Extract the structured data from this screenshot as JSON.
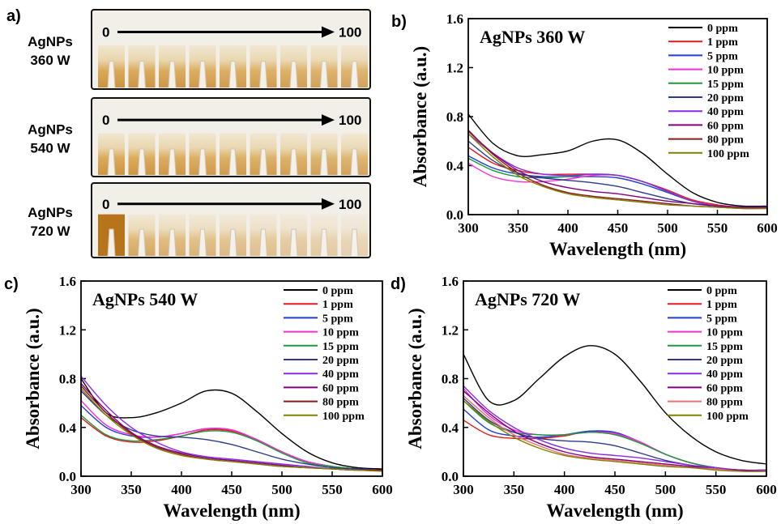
{
  "photo_panel": {
    "label": "a)",
    "rows": [
      {
        "name": [
          "AgNPs",
          "360 W"
        ],
        "start": "0",
        "end": "100"
      },
      {
        "name": [
          "AgNPs",
          "540 W"
        ],
        "start": "0",
        "end": "100"
      },
      {
        "name": [
          "AgNPs",
          "720 W"
        ],
        "start": "0",
        "end": "100"
      }
    ]
  },
  "chart_data": [
    {
      "type": "line",
      "panel_label": "b)",
      "title": "AgNPs 360 W",
      "xlabel": "Wavelength (nm)",
      "ylabel": "Absorbance (a.u.)",
      "x": [
        300,
        325,
        350,
        375,
        400,
        425,
        450,
        475,
        500,
        525,
        550,
        575,
        600
      ],
      "xlim": [
        300,
        600
      ],
      "xticks": [
        300,
        350,
        400,
        450,
        500,
        550,
        600
      ],
      "ylim": [
        0,
        1.6
      ],
      "yticks": [
        {
          "value": 0,
          "label": "0.0"
        },
        {
          "value": 0.4,
          "label": "0.4"
        },
        {
          "value": 0.8,
          "label": "0.8"
        },
        {
          "value": 1.2,
          "label": "1.2"
        },
        {
          "value": 1.6,
          "label": "1.6"
        }
      ],
      "legend": "upper-right",
      "series": [
        {
          "name": "0 ppm",
          "color": "#000000",
          "values": [
            0.82,
            0.58,
            0.48,
            0.49,
            0.52,
            0.6,
            0.61,
            0.5,
            0.33,
            0.18,
            0.1,
            0.07,
            0.07
          ]
        },
        {
          "name": "1 ppm",
          "color": "#e41a1c",
          "values": [
            0.55,
            0.42,
            0.36,
            0.33,
            0.33,
            0.33,
            0.32,
            0.27,
            0.2,
            0.12,
            0.08,
            0.06,
            0.06
          ]
        },
        {
          "name": "5 ppm",
          "color": "#1f3fd6",
          "values": [
            0.48,
            0.38,
            0.33,
            0.31,
            0.31,
            0.31,
            0.3,
            0.25,
            0.18,
            0.11,
            0.07,
            0.06,
            0.06
          ]
        },
        {
          "name": "10 ppm",
          "color": "#ff2bd6",
          "values": [
            0.42,
            0.31,
            0.27,
            0.27,
            0.29,
            0.32,
            0.32,
            0.27,
            0.19,
            0.11,
            0.07,
            0.06,
            0.06
          ]
        },
        {
          "name": "15 ppm",
          "color": "#1a9a3a",
          "values": [
            0.46,
            0.36,
            0.31,
            0.3,
            0.31,
            0.33,
            0.32,
            0.27,
            0.19,
            0.11,
            0.07,
            0.06,
            0.06
          ]
        },
        {
          "name": "20 ppm",
          "color": "#2e3a87",
          "values": [
            0.6,
            0.44,
            0.34,
            0.3,
            0.28,
            0.26,
            0.23,
            0.18,
            0.13,
            0.09,
            0.07,
            0.06,
            0.06
          ]
        },
        {
          "name": "40 ppm",
          "color": "#8a2be2",
          "values": [
            0.66,
            0.5,
            0.38,
            0.33,
            0.32,
            0.33,
            0.32,
            0.27,
            0.19,
            0.11,
            0.07,
            0.06,
            0.06
          ]
        },
        {
          "name": "60 ppm",
          "color": "#800080",
          "values": [
            0.68,
            0.5,
            0.36,
            0.27,
            0.22,
            0.19,
            0.17,
            0.14,
            0.11,
            0.09,
            0.07,
            0.06,
            0.06
          ]
        },
        {
          "name": "80 ppm",
          "color": "#8b1a1a",
          "values": [
            0.69,
            0.49,
            0.34,
            0.24,
            0.18,
            0.15,
            0.13,
            0.11,
            0.09,
            0.07,
            0.06,
            0.05,
            0.05
          ]
        },
        {
          "name": "100 ppm",
          "color": "#808000",
          "values": [
            0.66,
            0.47,
            0.32,
            0.23,
            0.17,
            0.14,
            0.12,
            0.1,
            0.08,
            0.07,
            0.06,
            0.05,
            0.05
          ]
        }
      ]
    },
    {
      "type": "line",
      "panel_label": "c)",
      "title": "AgNPs 540 W",
      "xlabel": "Wavelength (nm)",
      "ylabel": "Absorbance (a.u.)",
      "x": [
        300,
        325,
        350,
        375,
        400,
        425,
        450,
        475,
        500,
        525,
        550,
        575,
        600
      ],
      "xlim": [
        300,
        600
      ],
      "xticks": [
        300,
        350,
        400,
        450,
        500,
        550,
        600
      ],
      "ylim": [
        0,
        1.6
      ],
      "yticks": [
        {
          "value": 0,
          "label": "0.0"
        },
        {
          "value": 0.4,
          "label": "0.4"
        },
        {
          "value": 0.8,
          "label": "0.8"
        },
        {
          "value": 1.2,
          "label": "1.2"
        },
        {
          "value": 1.6,
          "label": "1.6"
        }
      ],
      "legend": "upper-right",
      "series": [
        {
          "name": "0 ppm",
          "color": "#000000",
          "values": [
            0.8,
            0.52,
            0.48,
            0.52,
            0.6,
            0.7,
            0.68,
            0.53,
            0.35,
            0.2,
            0.11,
            0.07,
            0.06
          ]
        },
        {
          "name": "1 ppm",
          "color": "#e41a1c",
          "values": [
            0.48,
            0.33,
            0.28,
            0.29,
            0.33,
            0.38,
            0.37,
            0.3,
            0.2,
            0.12,
            0.08,
            0.06,
            0.05
          ]
        },
        {
          "name": "5 ppm",
          "color": "#1f3fd6",
          "values": [
            0.58,
            0.4,
            0.33,
            0.32,
            0.35,
            0.39,
            0.38,
            0.3,
            0.2,
            0.12,
            0.08,
            0.06,
            0.05
          ]
        },
        {
          "name": "10 ppm",
          "color": "#ff2bd6",
          "values": [
            0.62,
            0.42,
            0.34,
            0.32,
            0.35,
            0.39,
            0.38,
            0.3,
            0.2,
            0.12,
            0.08,
            0.06,
            0.05
          ]
        },
        {
          "name": "15 ppm",
          "color": "#1a9a3a",
          "values": [
            0.5,
            0.34,
            0.29,
            0.3,
            0.33,
            0.37,
            0.36,
            0.29,
            0.19,
            0.11,
            0.08,
            0.06,
            0.05
          ]
        },
        {
          "name": "20 ppm",
          "color": "#2e3a87",
          "values": [
            0.7,
            0.5,
            0.38,
            0.33,
            0.32,
            0.3,
            0.26,
            0.2,
            0.14,
            0.1,
            0.07,
            0.06,
            0.05
          ]
        },
        {
          "name": "40 ppm",
          "color": "#8a2be2",
          "values": [
            0.82,
            0.58,
            0.4,
            0.28,
            0.2,
            0.16,
            0.14,
            0.12,
            0.1,
            0.08,
            0.06,
            0.05,
            0.05
          ]
        },
        {
          "name": "60 ppm",
          "color": "#800080",
          "values": [
            0.76,
            0.54,
            0.36,
            0.25,
            0.19,
            0.15,
            0.13,
            0.11,
            0.09,
            0.07,
            0.06,
            0.05,
            0.05
          ]
        },
        {
          "name": "80 ppm",
          "color": "#8b1a1a",
          "values": [
            0.74,
            0.52,
            0.35,
            0.24,
            0.18,
            0.14,
            0.12,
            0.1,
            0.08,
            0.07,
            0.06,
            0.05,
            0.05
          ]
        },
        {
          "name": "100 ppm",
          "color": "#808000",
          "values": [
            0.72,
            0.5,
            0.34,
            0.23,
            0.17,
            0.14,
            0.12,
            0.1,
            0.08,
            0.07,
            0.06,
            0.05,
            0.04
          ]
        }
      ]
    },
    {
      "type": "line",
      "panel_label": "d)",
      "title": "AgNPs 720 W",
      "xlabel": "Wavelength (nm)",
      "ylabel": "Absorbance (a.u.)",
      "x": [
        300,
        325,
        350,
        375,
        400,
        425,
        450,
        475,
        500,
        525,
        550,
        575,
        600
      ],
      "xlim": [
        300,
        600
      ],
      "xticks": [
        300,
        350,
        400,
        450,
        500,
        550,
        600
      ],
      "ylim": [
        0,
        1.6
      ],
      "yticks": [
        {
          "value": 0,
          "label": "0.0"
        },
        {
          "value": 0.4,
          "label": "0.4"
        },
        {
          "value": 0.8,
          "label": "0.8"
        },
        {
          "value": 1.2,
          "label": "1.2"
        },
        {
          "value": 1.6,
          "label": "1.6"
        }
      ],
      "legend": "upper-right",
      "series": [
        {
          "name": "0 ppm",
          "color": "#000000",
          "values": [
            1.0,
            0.62,
            0.62,
            0.8,
            0.98,
            1.07,
            1.0,
            0.78,
            0.52,
            0.33,
            0.2,
            0.13,
            0.1
          ]
        },
        {
          "name": "1 ppm",
          "color": "#e41a1c",
          "values": [
            0.46,
            0.34,
            0.31,
            0.31,
            0.33,
            0.37,
            0.35,
            0.28,
            0.18,
            0.11,
            0.07,
            0.05,
            0.05
          ]
        },
        {
          "name": "5 ppm",
          "color": "#1f3fd6",
          "values": [
            0.55,
            0.38,
            0.33,
            0.32,
            0.34,
            0.37,
            0.36,
            0.28,
            0.18,
            0.11,
            0.07,
            0.05,
            0.05
          ]
        },
        {
          "name": "10 ppm",
          "color": "#ff2bd6",
          "values": [
            0.72,
            0.5,
            0.38,
            0.34,
            0.34,
            0.36,
            0.35,
            0.28,
            0.18,
            0.11,
            0.07,
            0.05,
            0.05
          ]
        },
        {
          "name": "15 ppm",
          "color": "#1a9a3a",
          "values": [
            0.62,
            0.44,
            0.36,
            0.34,
            0.34,
            0.36,
            0.34,
            0.27,
            0.18,
            0.11,
            0.07,
            0.05,
            0.05
          ]
        },
        {
          "name": "20 ppm",
          "color": "#2e3a87",
          "values": [
            0.64,
            0.46,
            0.36,
            0.31,
            0.29,
            0.28,
            0.25,
            0.19,
            0.13,
            0.09,
            0.06,
            0.05,
            0.05
          ]
        },
        {
          "name": "40 ppm",
          "color": "#8a2be2",
          "values": [
            0.74,
            0.54,
            0.4,
            0.3,
            0.23,
            0.19,
            0.17,
            0.15,
            0.12,
            0.09,
            0.07,
            0.05,
            0.05
          ]
        },
        {
          "name": "60 ppm",
          "color": "#800080",
          "values": [
            0.7,
            0.52,
            0.37,
            0.27,
            0.2,
            0.16,
            0.14,
            0.12,
            0.1,
            0.08,
            0.06,
            0.05,
            0.04
          ]
        },
        {
          "name": "80 ppm",
          "color": "#e87070",
          "values": [
            0.66,
            0.48,
            0.34,
            0.25,
            0.18,
            0.15,
            0.13,
            0.11,
            0.09,
            0.07,
            0.06,
            0.04,
            0.04
          ]
        },
        {
          "name": "100 ppm",
          "color": "#808000",
          "values": [
            0.62,
            0.45,
            0.32,
            0.23,
            0.17,
            0.14,
            0.12,
            0.1,
            0.08,
            0.07,
            0.05,
            0.04,
            0.04
          ]
        }
      ]
    }
  ]
}
